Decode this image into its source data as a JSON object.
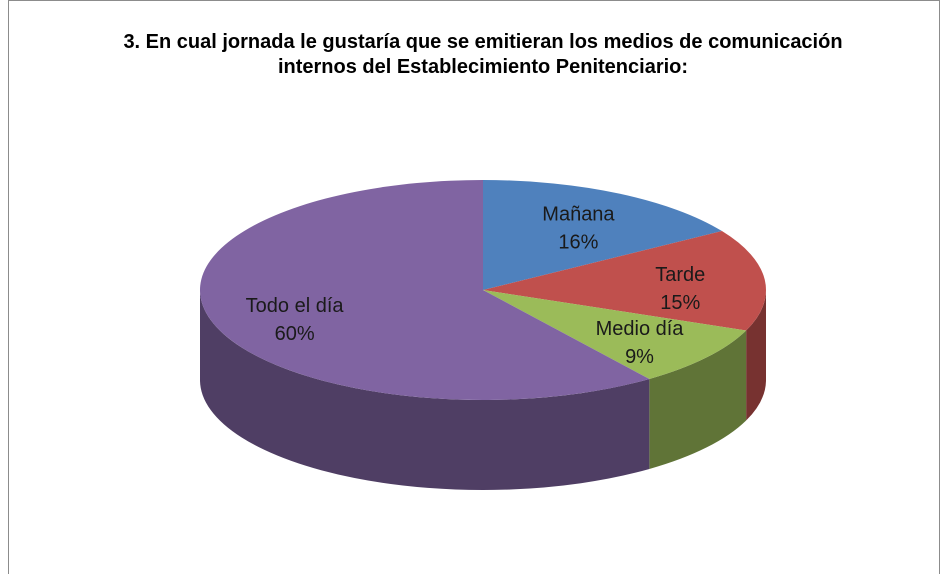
{
  "chart_data": {
    "type": "pie",
    "title": "3. En cual jornada le gustaría que se emitieran los medios de comunicación internos del Establecimiento Penitenciario:",
    "categories": [
      "Mañana",
      "Tarde",
      "Medio día",
      "Todo el día"
    ],
    "values": [
      16,
      15,
      9,
      60
    ],
    "value_labels": [
      "16%",
      "15%",
      "9%",
      "60%"
    ],
    "colors": [
      "#4f81bd",
      "#c0504d",
      "#9bbb59",
      "#8064a2"
    ]
  }
}
